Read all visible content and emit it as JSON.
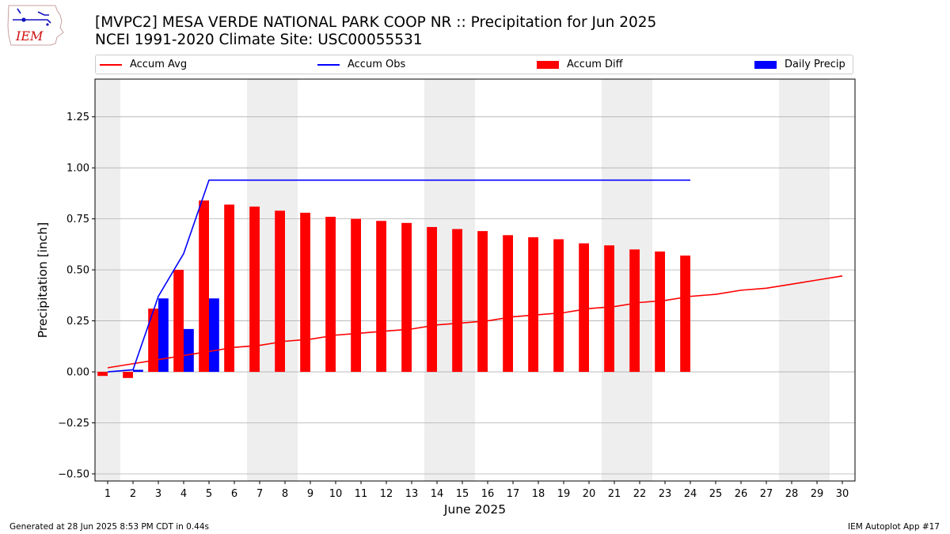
{
  "logo_text": "IEM",
  "title_line1": "[MVPC2] MESA VERDE NATIONAL PARK COOP NR :: Precipitation for Jun 2025",
  "title_line2": "NCEI 1991-2020 Climate Site: USC00055531",
  "footer_left": "Generated at 28 Jun 2025 8:53 PM CDT in 0.44s",
  "footer_right": "IEM Autoplot App #17",
  "colors": {
    "avg": "#ff0000",
    "obs": "#0000ff",
    "diff": "#ff0000",
    "daily": "#0000ff",
    "weekend": "#eeeeee",
    "grid": "#b0b0b0"
  },
  "legend": [
    {
      "label": "Accum Avg",
      "kind": "line",
      "color": "#ff0000"
    },
    {
      "label": "Accum Obs",
      "kind": "line",
      "color": "#0000ff"
    },
    {
      "label": "Accum Diff",
      "kind": "box",
      "color": "#ff0000"
    },
    {
      "label": "Daily Precip",
      "kind": "box",
      "color": "#0000ff"
    }
  ],
  "chart_data": {
    "type": "bar",
    "title": "[MVPC2] MESA VERDE NATIONAL PARK COOP NR :: Precipitation for Jun 2025",
    "subtitle": "NCEI 1991-2020 Climate Site: USC00055531",
    "xlabel": "June 2025",
    "ylabel": "Precipitation [inch]",
    "xlim": [
      0.5,
      30.5
    ],
    "ylim": [
      -0.535,
      1.435
    ],
    "yticks": [
      -0.5,
      -0.25,
      0.0,
      0.25,
      0.5,
      0.75,
      1.0,
      1.25
    ],
    "ytick_labels": [
      "−0.50",
      "−0.25",
      "0.00",
      "0.25",
      "0.50",
      "0.75",
      "1.00",
      "1.25"
    ],
    "xticks": [
      1,
      2,
      3,
      4,
      5,
      6,
      7,
      8,
      9,
      10,
      11,
      12,
      13,
      14,
      15,
      16,
      17,
      18,
      19,
      20,
      21,
      22,
      23,
      24,
      25,
      26,
      27,
      28,
      29,
      30
    ],
    "grid": "y",
    "legend_position": "top",
    "weekend_days": [
      1,
      7,
      8,
      14,
      15,
      21,
      22,
      28,
      29
    ],
    "series": [
      {
        "name": "Accum Avg",
        "type": "line",
        "x": [
          1,
          2,
          3,
          4,
          5,
          6,
          7,
          8,
          9,
          10,
          11,
          12,
          13,
          14,
          15,
          16,
          17,
          18,
          19,
          20,
          21,
          22,
          23,
          24,
          25,
          26,
          27,
          28,
          29,
          30
        ],
        "values": [
          0.02,
          0.04,
          0.06,
          0.08,
          0.1,
          0.12,
          0.13,
          0.15,
          0.16,
          0.18,
          0.19,
          0.2,
          0.21,
          0.23,
          0.24,
          0.25,
          0.27,
          0.28,
          0.29,
          0.31,
          0.32,
          0.34,
          0.35,
          0.37,
          0.38,
          0.4,
          0.41,
          0.43,
          0.45,
          0.47
        ]
      },
      {
        "name": "Accum Obs",
        "type": "line",
        "x": [
          1,
          2,
          3,
          4,
          5,
          6,
          7,
          8,
          9,
          10,
          11,
          12,
          13,
          14,
          15,
          16,
          17,
          18,
          19,
          20,
          21,
          22,
          23,
          24
        ],
        "values": [
          0.0,
          0.01,
          0.37,
          0.58,
          0.94,
          0.94,
          0.94,
          0.94,
          0.94,
          0.94,
          0.94,
          0.94,
          0.94,
          0.94,
          0.94,
          0.94,
          0.94,
          0.94,
          0.94,
          0.94,
          0.94,
          0.94,
          0.94,
          0.94
        ]
      },
      {
        "name": "Accum Diff",
        "type": "bar",
        "x": [
          1,
          2,
          3,
          4,
          5,
          6,
          7,
          8,
          9,
          10,
          11,
          12,
          13,
          14,
          15,
          16,
          17,
          18,
          19,
          20,
          21,
          22,
          23,
          24
        ],
        "values": [
          -0.02,
          -0.03,
          0.31,
          0.5,
          0.84,
          0.82,
          0.81,
          0.79,
          0.78,
          0.76,
          0.75,
          0.74,
          0.73,
          0.71,
          0.7,
          0.69,
          0.67,
          0.66,
          0.65,
          0.63,
          0.62,
          0.6,
          0.59,
          0.57
        ]
      },
      {
        "name": "Daily Precip",
        "type": "bar",
        "x": [
          1,
          2,
          3,
          4,
          5,
          6,
          7,
          8,
          9,
          10,
          11,
          12,
          13,
          14,
          15,
          16,
          17,
          18,
          19,
          20,
          21,
          22,
          23,
          24
        ],
        "values": [
          0.0,
          0.01,
          0.36,
          0.21,
          0.36,
          0,
          0,
          0,
          0,
          0,
          0,
          0,
          0,
          0,
          0,
          0,
          0,
          0,
          0,
          0,
          0,
          0,
          0,
          0
        ]
      }
    ]
  }
}
